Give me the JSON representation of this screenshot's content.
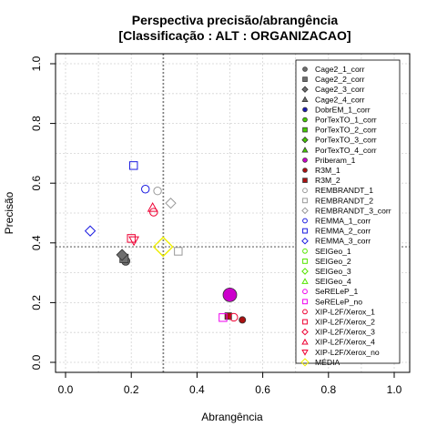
{
  "chart_data": {
    "type": "scatter",
    "title": "Perspectiva precisão/abrangência",
    "subtitle": "[Classificação : ALT : ORGANIZACAO]",
    "xlabel": "Abrangência",
    "ylabel": "Precisão",
    "xlim": [
      0,
      1
    ],
    "ylim": [
      0,
      1
    ],
    "x_ticks": [
      "0.0",
      "0.2",
      "0.4",
      "0.6",
      "0.8",
      "1.0"
    ],
    "y_ticks": [
      "0.0",
      "0.2",
      "0.4",
      "0.6",
      "0.8",
      "1.0"
    ],
    "grid": true,
    "legend_position": "right",
    "reference_lines": {
      "x": 0.297,
      "y": 0.387
    },
    "series": [
      {
        "name": "Cage2_1_corr",
        "shape": "circle",
        "color": "#6e6e6e",
        "filled": true,
        "points": [
          [
            0.183,
            0.339
          ]
        ]
      },
      {
        "name": "Cage2_2_corr",
        "shape": "square",
        "color": "#6e6e6e",
        "filled": true,
        "points": [
          [
            0.178,
            0.348
          ]
        ]
      },
      {
        "name": "Cage2_3_corr",
        "shape": "diamond",
        "color": "#6e6e6e",
        "filled": true,
        "points": [
          [
            0.172,
            0.36
          ]
        ]
      },
      {
        "name": "Cage2_4_corr",
        "shape": "triangle",
        "color": "#6e6e6e",
        "filled": true,
        "points": []
      },
      {
        "name": "DobrEM_1_corr",
        "shape": "circle",
        "color": "#1a1ab4",
        "filled": true,
        "points": []
      },
      {
        "name": "PorTexTO_1_corr",
        "shape": "circle",
        "color": "#44cc00",
        "filled": true,
        "points": []
      },
      {
        "name": "PorTexTO_2_corr",
        "shape": "square",
        "color": "#44cc00",
        "filled": true,
        "points": []
      },
      {
        "name": "PorTexTO_3_corr",
        "shape": "diamond",
        "color": "#44cc00",
        "filled": true,
        "points": []
      },
      {
        "name": "PorTexTO_4_corr",
        "shape": "triangle",
        "color": "#44cc00",
        "filled": true,
        "points": []
      },
      {
        "name": "Priberam_1",
        "shape": "circle",
        "color": "#cc00cc",
        "filled": true,
        "points": [
          [
            0.5,
            0.226
          ]
        ]
      },
      {
        "name": "R3M_1",
        "shape": "circle",
        "color": "#aa1111",
        "filled": true,
        "points": [
          [
            0.538,
            0.142
          ]
        ]
      },
      {
        "name": "R3M_2",
        "shape": "square",
        "color": "#aa1111",
        "filled": true,
        "points": [
          [
            0.495,
            0.155
          ]
        ]
      },
      {
        "name": "REMBRANDT_1",
        "shape": "circle",
        "color": "#999999",
        "filled": false,
        "points": [
          [
            0.28,
            0.574
          ]
        ]
      },
      {
        "name": "REMBRANDT_2",
        "shape": "square",
        "color": "#999999",
        "filled": false,
        "points": [
          [
            0.343,
            0.372
          ]
        ]
      },
      {
        "name": "REMBRANDT_3_corr",
        "shape": "diamond",
        "color": "#999999",
        "filled": false,
        "points": [
          [
            0.32,
            0.533
          ]
        ]
      },
      {
        "name": "REMMA_1_corr",
        "shape": "circle",
        "color": "#1a1ae0",
        "filled": false,
        "points": [
          [
            0.243,
            0.58
          ]
        ]
      },
      {
        "name": "REMMA_2_corr",
        "shape": "square",
        "color": "#1a1ae0",
        "filled": false,
        "points": [
          [
            0.207,
            0.659
          ]
        ]
      },
      {
        "name": "REMMA_3_corr",
        "shape": "diamond",
        "color": "#1a1ae0",
        "filled": false,
        "points": [
          [
            0.075,
            0.44
          ]
        ]
      },
      {
        "name": "SEIGeo_1",
        "shape": "circle",
        "color": "#55e600",
        "filled": false,
        "points": []
      },
      {
        "name": "SEIGeo_2",
        "shape": "square",
        "color": "#55e600",
        "filled": false,
        "points": []
      },
      {
        "name": "SEIGeo_3",
        "shape": "diamond",
        "color": "#55e600",
        "filled": false,
        "points": []
      },
      {
        "name": "SEIGeo_4",
        "shape": "triangle",
        "color": "#55e600",
        "filled": false,
        "points": []
      },
      {
        "name": "SeRELeP_1",
        "shape": "circle",
        "color": "#ee00ee",
        "filled": false,
        "points": []
      },
      {
        "name": "SeRELeP_no",
        "shape": "square",
        "color": "#ee00ee",
        "filled": false,
        "points": [
          [
            0.479,
            0.15
          ]
        ]
      },
      {
        "name": "XIP-L2F/Xerox_1",
        "shape": "circle",
        "color": "#ee0033",
        "filled": false,
        "points": [
          [
            0.268,
            0.503
          ],
          [
            0.512,
            0.151
          ]
        ]
      },
      {
        "name": "XIP-L2F/Xerox_2",
        "shape": "square",
        "color": "#ee0033",
        "filled": false,
        "points": [
          [
            0.2,
            0.415
          ]
        ]
      },
      {
        "name": "XIP-L2F/Xerox_3",
        "shape": "diamond",
        "color": "#ee0033",
        "filled": false,
        "points": []
      },
      {
        "name": "XIP-L2F/Xerox_4",
        "shape": "triangle",
        "color": "#ee0033",
        "filled": false,
        "points": [
          [
            0.265,
            0.518
          ]
        ]
      },
      {
        "name": "XIP-L2F/Xerox_no",
        "shape": "triangle-down",
        "color": "#ee0033",
        "filled": false,
        "points": [
          [
            0.208,
            0.408
          ]
        ]
      },
      {
        "name": "MÉDIA",
        "shape": "diamond-large",
        "color": "#eeee00",
        "filled": false,
        "points": [
          [
            0.297,
            0.387
          ]
        ]
      }
    ]
  }
}
